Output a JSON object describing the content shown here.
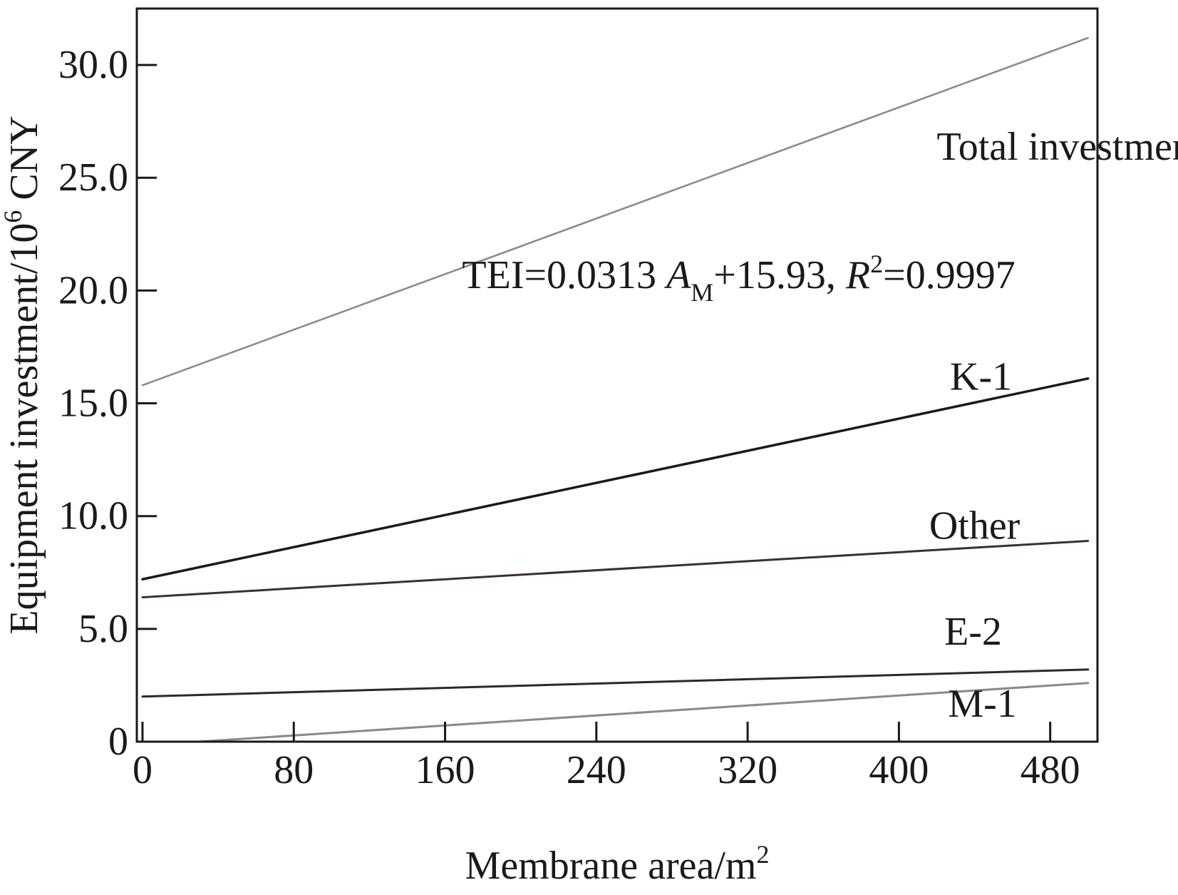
{
  "chart_data": {
    "type": "line",
    "title": "",
    "xlabel": "Membrane area/m",
    "xlabel_sup": "2",
    "ylabel_prefix": "Equipment investment/10",
    "ylabel_sup": "6",
    "ylabel_suffix": " CNY",
    "xlim": [
      -3,
      505
    ],
    "ylim": [
      0,
      32.5
    ],
    "x_ticks": [
      0,
      80,
      160,
      240,
      320,
      400,
      480
    ],
    "x_tick_labels": [
      "0",
      "80",
      "160",
      "240",
      "320",
      "400",
      "480"
    ],
    "y_ticks": [
      0,
      5,
      10,
      15,
      20,
      25,
      30
    ],
    "y_tick_labels": [
      "0",
      "5.0",
      "10.0",
      "15.0",
      "20.0",
      "25.0",
      "30.0"
    ],
    "grid": false,
    "legend": "none",
    "series": [
      {
        "name": "Total investment",
        "x": [
          0,
          500
        ],
        "y": [
          15.8,
          31.2
        ],
        "color": "#8a8a8a",
        "width": 2.5
      },
      {
        "name": "K-1",
        "x": [
          0,
          500
        ],
        "y": [
          7.2,
          16.1
        ],
        "color": "#1a1a1a",
        "width": 3.5
      },
      {
        "name": "Other",
        "x": [
          0,
          500
        ],
        "y": [
          6.4,
          8.9
        ],
        "color": "#3a3030",
        "width": 3
      },
      {
        "name": "E-2",
        "x": [
          0,
          500
        ],
        "y": [
          2.0,
          3.2
        ],
        "color": "#2a2a2a",
        "width": 3
      },
      {
        "name": "M-1",
        "x": [
          0,
          30,
          500
        ],
        "y": [
          0.0,
          0.0,
          2.6
        ],
        "color": "#8a8a8a",
        "width": 3
      }
    ],
    "series_labels": [
      {
        "text": "Total investment",
        "at": [
          420,
          25.8
        ]
      },
      {
        "text": "K-1",
        "at": [
          427,
          15.6
        ]
      },
      {
        "text": "Other",
        "at": [
          416,
          9.0
        ]
      },
      {
        "text": "E-2",
        "at": [
          424,
          4.3
        ]
      },
      {
        "text": "M-1",
        "at": [
          426,
          1.1
        ]
      }
    ],
    "annotation": {
      "pre": "TEI=0.0313 ",
      "var": "A",
      "var_sub": "M",
      "mid": "+15.93,  ",
      "r": "R",
      "r_sup": "2",
      "post": "=0.9997",
      "at": [
        169,
        20.1
      ]
    }
  }
}
